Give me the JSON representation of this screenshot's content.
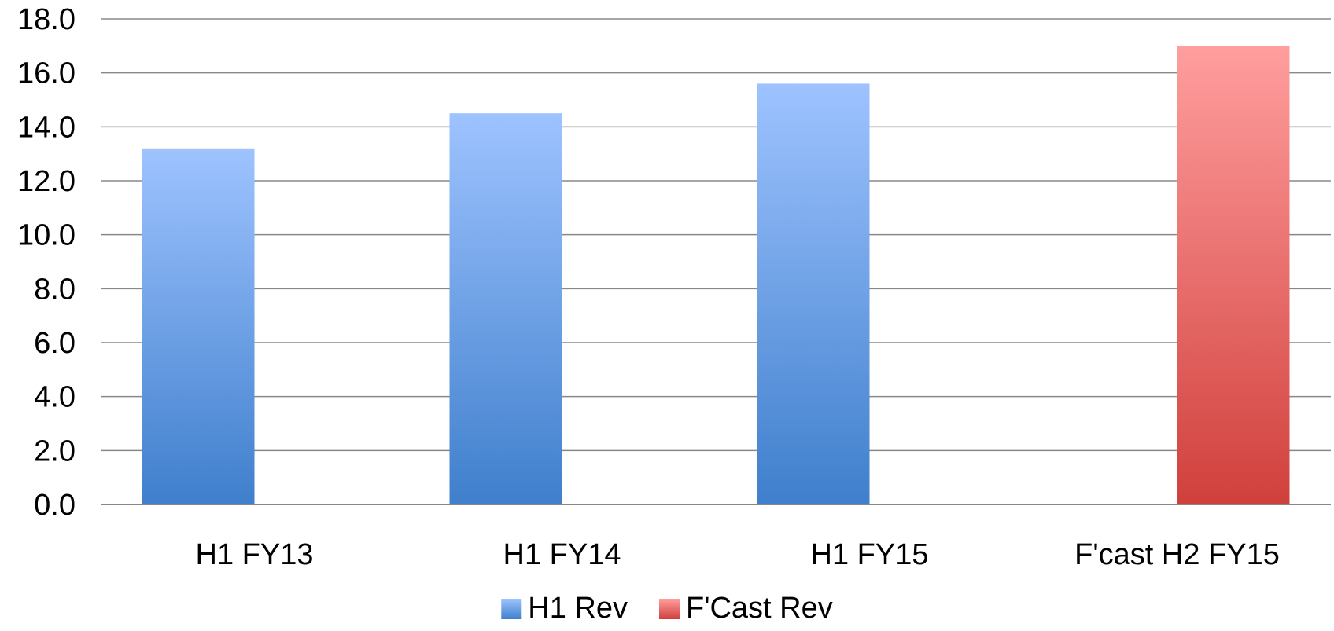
{
  "chart_data": {
    "type": "bar",
    "categories": [
      "H1 FY13",
      "H1 FY14",
      "H1 FY15",
      "F'cast H2 FY15"
    ],
    "series": [
      {
        "name": "H1 Rev",
        "values": [
          13.2,
          14.5,
          15.6,
          null
        ],
        "color_top": "#9EC3FF",
        "color_bottom": "#3F7FCC"
      },
      {
        "name": "F'Cast Rev",
        "values": [
          null,
          null,
          null,
          17.0
        ],
        "color_top": "#FF9E9E",
        "color_bottom": "#D0403C"
      }
    ],
    "ylim": [
      0,
      18
    ],
    "yticks": [
      "0.0",
      "2.0",
      "4.0",
      "6.0",
      "8.0",
      "10.0",
      "12.0",
      "14.0",
      "16.0",
      "18.0"
    ],
    "ytick_values": [
      0,
      2,
      4,
      6,
      8,
      10,
      12,
      14,
      16,
      18
    ],
    "grid": true,
    "legend_position": "bottom-center",
    "title": "",
    "xlabel": "",
    "ylabel": ""
  }
}
